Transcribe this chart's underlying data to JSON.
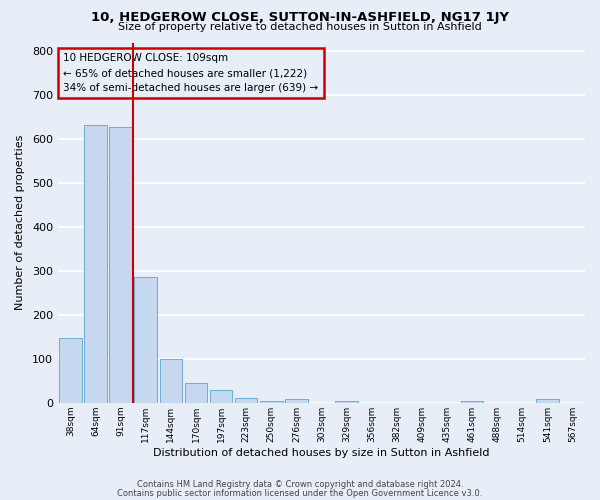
{
  "title": "10, HEDGEROW CLOSE, SUTTON-IN-ASHFIELD, NG17 1JY",
  "subtitle": "Size of property relative to detached houses in Sutton in Ashfield",
  "xlabel": "Distribution of detached houses by size in Sutton in Ashfield",
  "ylabel": "Number of detached properties",
  "categories": [
    "38sqm",
    "64sqm",
    "91sqm",
    "117sqm",
    "144sqm",
    "170sqm",
    "197sqm",
    "223sqm",
    "250sqm",
    "276sqm",
    "303sqm",
    "329sqm",
    "356sqm",
    "382sqm",
    "409sqm",
    "435sqm",
    "461sqm",
    "488sqm",
    "514sqm",
    "541sqm",
    "567sqm"
  ],
  "values": [
    148,
    632,
    628,
    286,
    100,
    46,
    30,
    10,
    5,
    8,
    0,
    5,
    0,
    0,
    0,
    0,
    5,
    0,
    0,
    8,
    0
  ],
  "bar_color": "#c5d8f0",
  "bar_edge_color": "#6aaed6",
  "vline_color": "#cc0000",
  "annotation_title": "10 HEDGEROW CLOSE: 109sqm",
  "annotation_line1": "← 65% of detached houses are smaller (1,222)",
  "annotation_line2": "34% of semi-detached houses are larger (639) →",
  "annotation_box_color": "#cc0000",
  "ylim": [
    0,
    820
  ],
  "yticks": [
    0,
    100,
    200,
    300,
    400,
    500,
    600,
    700,
    800
  ],
  "footnote1": "Contains HM Land Registry data © Crown copyright and database right 2024.",
  "footnote2": "Contains public sector information licensed under the Open Government Licence v3.0.",
  "bg_color": "#e8eef7",
  "plot_bg_color": "#e8eef7",
  "grid_color": "#ffffff"
}
